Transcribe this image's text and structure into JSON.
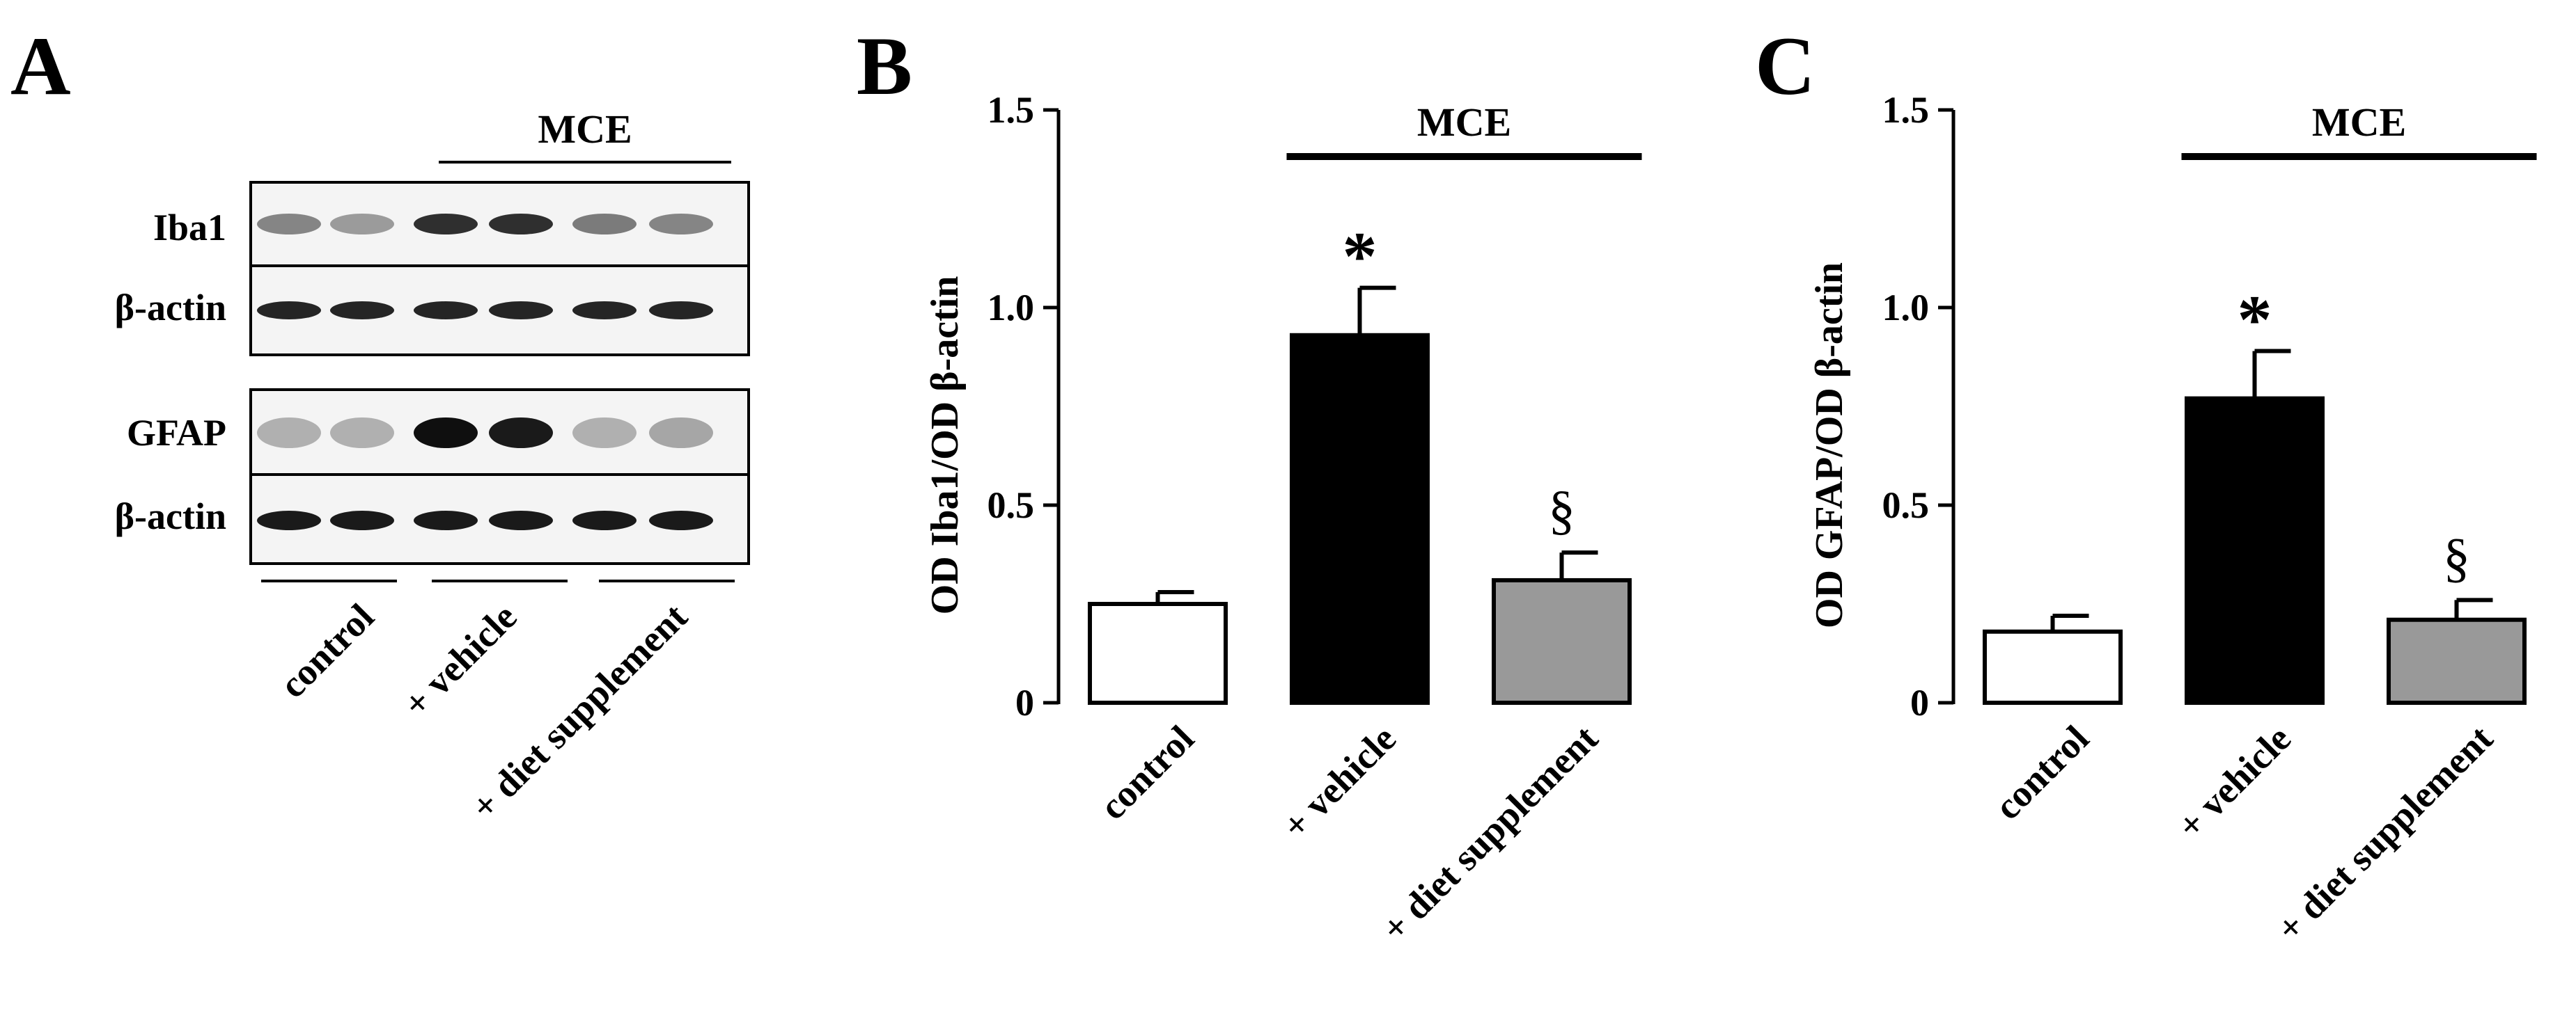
{
  "panel_a": {
    "letter": "A",
    "group_label": "MCE",
    "blot_labels": [
      "Iba1",
      "β-actin",
      "GFAP",
      "β-actin"
    ],
    "lane_groups": [
      "control",
      "+ vehicle",
      "+ diet supplement"
    ],
    "bands": {
      "iba1": [
        0.45,
        0.35,
        0.85,
        0.85,
        0.5,
        0.45
      ],
      "actin1": [
        0.9,
        0.9,
        0.9,
        0.9,
        0.9,
        0.9
      ],
      "gfap": [
        0.25,
        0.25,
        1.0,
        0.95,
        0.25,
        0.3
      ],
      "actin2": [
        0.95,
        0.95,
        0.95,
        0.95,
        0.95,
        0.95
      ]
    }
  },
  "chart_data": [
    {
      "panel": "B",
      "type": "bar",
      "ylabel": "OD Iba1/OD β-actin",
      "ylim": [
        0,
        1.5
      ],
      "yticks": [
        "0",
        "0.5",
        "1.0",
        "1.5"
      ],
      "ytick_values": [
        0,
        0.5,
        1.0,
        1.5
      ],
      "categories": [
        "control",
        "+ vehicle",
        "+ diet supplement"
      ],
      "values": [
        0.25,
        0.93,
        0.31
      ],
      "errors": [
        0.03,
        0.12,
        0.07
      ],
      "bar_colors": [
        "#ffffff",
        "#000000",
        "#999999"
      ],
      "annotations": [
        "",
        "*",
        "§"
      ],
      "group_label": "MCE"
    },
    {
      "panel": "C",
      "type": "bar",
      "ylabel": "OD GFAP/OD β-actin",
      "ylim": [
        0,
        1.5
      ],
      "yticks": [
        "0",
        "0.5",
        "1.0",
        "1.5"
      ],
      "ytick_values": [
        0,
        0.5,
        1.0,
        1.5
      ],
      "categories": [
        "control",
        "+ vehicle",
        "+ diet supplement"
      ],
      "values": [
        0.18,
        0.77,
        0.21
      ],
      "errors": [
        0.04,
        0.12,
        0.05
      ],
      "bar_colors": [
        "#ffffff",
        "#000000",
        "#999999"
      ],
      "annotations": [
        "",
        "*",
        "§"
      ],
      "group_label": "MCE"
    }
  ]
}
